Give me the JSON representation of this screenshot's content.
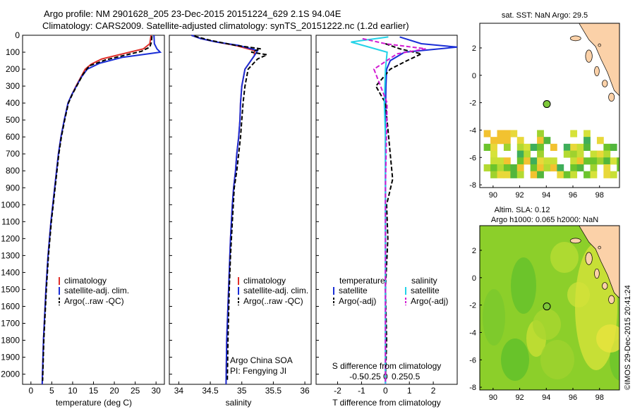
{
  "header": {
    "title_line1": "Argo profile: NM 2901628_205 23-Dec-2015 20151224_629 2.1S 94.04E",
    "title_line2": "Climatology: CARS2009. Satellite-adjusted climatology: synTS_20151222.nc (1.2d earlier)"
  },
  "chart_data": [
    {
      "type": "line",
      "id": "temperature",
      "xlabel": "temperature (deg C)",
      "x_ticks": [
        0,
        5,
        10,
        15,
        20,
        25,
        30
      ],
      "xlim": [
        -2,
        32
      ],
      "ylim": [
        0,
        2060
      ],
      "y_ticks": [
        0,
        100,
        200,
        300,
        400,
        500,
        600,
        700,
        800,
        900,
        1000,
        1100,
        1200,
        1300,
        1400,
        1500,
        1600,
        1700,
        1800,
        1900,
        2000
      ],
      "series": [
        {
          "name": "climatology",
          "color": "#e0302a",
          "dash": "none",
          "x": [
            28.8,
            28.5,
            27.0,
            22.0,
            17.0,
            14.5,
            13.0,
            11.9,
            10.8,
            9.8,
            8.9,
            8.0,
            7.2,
            6.6,
            5.7,
            4.8,
            4.1,
            3.6,
            3.0,
            2.7
          ],
          "y": [
            0,
            50,
            80,
            110,
            140,
            170,
            200,
            250,
            300,
            350,
            400,
            500,
            600,
            700,
            900,
            1100,
            1300,
            1500,
            1800,
            2060
          ]
        },
        {
          "name": "satellite-adj. clim.",
          "color": "#1a2ed6",
          "dash": "none",
          "x": [
            29.5,
            29.6,
            30.2,
            31.0,
            22.0,
            16.5,
            13.5,
            12.0,
            10.9,
            9.8,
            8.9,
            8.0,
            7.2,
            6.6,
            5.7,
            4.8,
            4.1,
            3.6,
            3.0,
            2.7
          ],
          "y": [
            0,
            50,
            80,
            100,
            130,
            165,
            200,
            250,
            300,
            350,
            400,
            500,
            600,
            700,
            900,
            1100,
            1300,
            1500,
            1800,
            2060
          ]
        },
        {
          "name": "Argo(..raw -QC)",
          "color": "#000000",
          "dash": "6,3",
          "x": [
            29.0,
            28.9,
            28.5,
            26.5,
            23.0,
            18.0,
            14.0,
            12.5,
            11.2,
            10.0,
            9.0,
            8.1,
            7.3,
            6.7,
            5.8,
            4.9,
            4.2,
            3.7,
            3.1,
            2.8
          ],
          "y": [
            5,
            40,
            70,
            95,
            115,
            145,
            180,
            230,
            290,
            345,
            400,
            500,
            600,
            700,
            900,
            1100,
            1300,
            1500,
            1800,
            2040
          ]
        }
      ]
    },
    {
      "type": "line",
      "id": "salinity",
      "xlabel": "salinity",
      "x_ticks": [
        "34",
        "34.5",
        "35",
        "35.5",
        "36"
      ],
      "x_tick_values": [
        34,
        34.5,
        35,
        35.5,
        36
      ],
      "xlim": [
        33.85,
        36.1
      ],
      "ylim": [
        0,
        2060
      ],
      "series": [
        {
          "name": "climatology",
          "color": "#e0302a",
          "dash": "none",
          "x": [
            34.2,
            34.35,
            34.6,
            34.9,
            35.2,
            35.2,
            35.05,
            35.0,
            34.98,
            34.97,
            34.95,
            34.92,
            34.9,
            34.87,
            34.85,
            34.82,
            34.8,
            34.78,
            34.76,
            34.75
          ],
          "y": [
            0,
            20,
            40,
            60,
            90,
            120,
            200,
            300,
            400,
            500,
            600,
            700,
            800,
            900,
            1000,
            1200,
            1400,
            1600,
            1800,
            2060
          ]
        },
        {
          "name": "satellite-adj. clim.",
          "color": "#1a2ed6",
          "dash": "none",
          "x": [
            34.2,
            34.35,
            34.6,
            34.95,
            35.25,
            35.2,
            35.05,
            35.0,
            34.98,
            34.97,
            34.95,
            34.92,
            34.9,
            34.87,
            34.85,
            34.82,
            34.8,
            34.78,
            34.76,
            34.75
          ],
          "y": [
            0,
            20,
            40,
            60,
            90,
            120,
            200,
            300,
            400,
            500,
            600,
            700,
            800,
            900,
            1000,
            1200,
            1400,
            1600,
            1800,
            2060
          ]
        },
        {
          "name": "Argo(..raw -QC)",
          "color": "#000000",
          "dash": "6,3",
          "x": [
            34.25,
            34.5,
            34.9,
            35.3,
            35.15,
            35.4,
            35.25,
            35.1,
            35.05,
            35.02,
            35.0,
            34.98,
            34.95,
            34.92,
            34.88,
            34.85,
            34.82,
            34.8,
            34.78,
            34.77
          ],
          "y": [
            5,
            30,
            60,
            80,
            100,
            115,
            140,
            200,
            300,
            400,
            500,
            600,
            700,
            800,
            900,
            1100,
            1300,
            1500,
            1800,
            2040
          ]
        }
      ],
      "legend": [
        "climatology",
        "satellite-adj. clim.",
        "Argo(..raw -QC)"
      ],
      "annotation": [
        "Argo China SOA",
        "PI: Fengying JI"
      ]
    },
    {
      "type": "line",
      "id": "difference",
      "xlabel": "T difference from climatology",
      "xlabel_top": "S difference from climatology",
      "x_ticks_T": [
        "-2",
        "-1",
        "0",
        "1",
        "2"
      ],
      "x_ticks_T_values": [
        -2,
        -1,
        0,
        1,
        2
      ],
      "x_ticks_S": [
        "-0.5",
        "-0.25",
        "0",
        "0.25",
        "0.5"
      ],
      "x_ticks_S_values": [
        -0.5,
        -0.25,
        0,
        0.25,
        0.5
      ],
      "xlim_T": [
        -2.9,
        3.0
      ],
      "ylim": [
        0,
        2060
      ],
      "series": [
        {
          "name": "satellite",
          "group": "temperature",
          "color": "#1a2ed6",
          "dash": "none",
          "x": [
            0.6,
            1.5,
            3.0,
            0.8,
            0.2,
            0.05,
            0.02,
            0.0,
            0.0,
            0.0,
            0.0,
            0.0
          ],
          "y": [
            10,
            50,
            70,
            100,
            150,
            200,
            300,
            500,
            800,
            1200,
            1600,
            2060
          ]
        },
        {
          "name": "Argo(-adj)",
          "group": "temperature",
          "color": "#000000",
          "dash": "6,3",
          "x": [
            0.0,
            0.6,
            1.5,
            0.9,
            0.2,
            -0.4,
            0.0,
            0.3,
            0.05,
            0.1,
            0.0,
            0.05,
            0.0
          ],
          "y": [
            50,
            80,
            110,
            150,
            200,
            300,
            400,
            850,
            1000,
            1200,
            1500,
            1800,
            2040
          ]
        },
        {
          "name": "satellite",
          "group": "salinity",
          "color": "#22d3e8",
          "dash": "none",
          "x": [
            0.05,
            -0.6,
            0.03,
            0.0,
            -0.02,
            0.0,
            0.0,
            0.0,
            0.0,
            0.0
          ],
          "y": [
            10,
            40,
            100,
            200,
            400,
            600,
            900,
            1200,
            1600,
            2060
          ]
        },
        {
          "name": "Argo(-adj)",
          "group": "salinity",
          "color": "#d21cd2",
          "dash": "6,3",
          "x": [
            -0.4,
            0.0,
            0.7,
            0.2,
            -0.2,
            0.03,
            0.0,
            0.0
          ],
          "y": [
            20,
            50,
            80,
            110,
            200,
            400,
            900,
            2060
          ]
        }
      ],
      "legend_headers": [
        "temperature",
        "salinity"
      ]
    },
    {
      "type": "heatmap",
      "id": "sst_map",
      "title": "sat. SST: NaN Argo: 29.5",
      "x_ticks": [
        "90",
        "92",
        "94",
        "96",
        "98"
      ],
      "y_ticks": [
        "2",
        "0",
        "-2",
        "-4",
        "-6",
        "-8"
      ],
      "xlim": [
        89,
        99.5
      ],
      "ylim": [
        -8.2,
        3.8
      ],
      "argo_point": {
        "lon": 94.04,
        "lat": -2.1
      }
    },
    {
      "type": "heatmap",
      "id": "sla_map",
      "title_line1": "Altim. SLA: 0.12",
      "title_line2": "Argo h1000: 0.065 h2000: NaN",
      "x_ticks": [
        "90",
        "92",
        "94",
        "96",
        "98"
      ],
      "y_ticks": [
        "2",
        "0",
        "-2",
        "-4",
        "-6",
        "-8"
      ],
      "xlim": [
        89,
        99.5
      ],
      "ylim": [
        -8.2,
        3.8
      ],
      "argo_point": {
        "lon": 94.04,
        "lat": -2.1
      }
    }
  ],
  "watermark": "©IMOS 29-Dec-2015 20:41:24"
}
